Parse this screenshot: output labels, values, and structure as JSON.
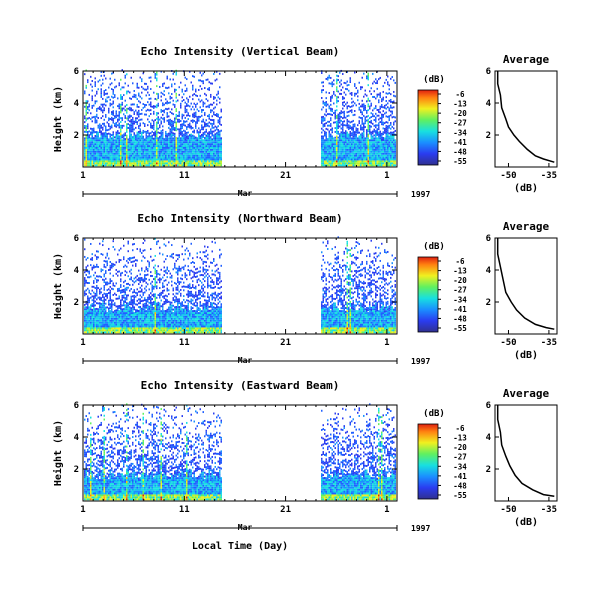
{
  "figure": {
    "x_axis_label": "Local Time (Day)",
    "month_label": "Mar",
    "year_label": "1997",
    "x_tick_labels": [
      "1",
      "11",
      "21",
      "1"
    ]
  },
  "colorbar": {
    "unit_label": "(dB)",
    "tick_labels": [
      "-6",
      "-13",
      "-20",
      "-27",
      "-34",
      "-41",
      "-48",
      "-55"
    ],
    "range_db": [
      -55,
      -6
    ]
  },
  "chart_data": [
    {
      "type": "heatmap",
      "title": "Echo Intensity (Vertical Beam)",
      "ylabel": "Height (km)",
      "x_ticks": [
        1,
        11,
        21,
        31
      ],
      "y_ticks": [
        2,
        4,
        6
      ],
      "y_tick_labels": [
        "2",
        "4",
        "6"
      ],
      "xlim": [
        1,
        32
      ],
      "ylim": [
        0,
        6
      ],
      "data_gap_days": [
        14.6,
        24.4
      ],
      "colorbar_unit": "(dB)"
    },
    {
      "type": "line",
      "title": "Average",
      "xlabel": "(dB)",
      "x_tick_labels": [
        "-50",
        "-35"
      ],
      "y_tick_labels": [
        "2",
        "4",
        "6"
      ],
      "xlim": [
        -55,
        -32
      ],
      "ylim": [
        0,
        6
      ],
      "profile": [
        [
          -54,
          6.0
        ],
        [
          -54,
          5.2
        ],
        [
          -53,
          4.5
        ],
        [
          -52.5,
          3.7
        ],
        [
          -51,
          3.0
        ],
        [
          -50,
          2.5
        ],
        [
          -48,
          2.0
        ],
        [
          -46,
          1.6
        ],
        [
          -43,
          1.1
        ],
        [
          -40,
          0.7
        ],
        [
          -37,
          0.5
        ],
        [
          -33,
          0.3
        ]
      ]
    },
    {
      "type": "heatmap",
      "title": "Echo Intensity (Northward Beam)",
      "ylabel": "Height (km)",
      "x_ticks": [
        1,
        11,
        21,
        31
      ],
      "y_ticks": [
        2,
        4,
        6
      ],
      "y_tick_labels": [
        "2",
        "4",
        "6"
      ],
      "xlim": [
        1,
        32
      ],
      "ylim": [
        0,
        6
      ],
      "data_gap_days": [
        14.6,
        24.4
      ],
      "colorbar_unit": "(dB)"
    },
    {
      "type": "line",
      "title": "Average",
      "xlabel": "(dB)",
      "x_tick_labels": [
        "-50",
        "-35"
      ],
      "y_tick_labels": [
        "2",
        "4",
        "6"
      ],
      "xlim": [
        -55,
        -32
      ],
      "ylim": [
        0,
        6
      ],
      "profile": [
        [
          -54,
          6.0
        ],
        [
          -54,
          5.0
        ],
        [
          -53,
          4.2
        ],
        [
          -52,
          3.4
        ],
        [
          -51,
          2.6
        ],
        [
          -49,
          2.0
        ],
        [
          -47,
          1.5
        ],
        [
          -44,
          1.0
        ],
        [
          -40,
          0.6
        ],
        [
          -36,
          0.4
        ],
        [
          -33,
          0.3
        ]
      ]
    },
    {
      "type": "heatmap",
      "title": "Echo Intensity (Eastward Beam)",
      "ylabel": "Height (km)",
      "x_ticks": [
        1,
        11,
        21,
        31
      ],
      "y_ticks": [
        2,
        4,
        6
      ],
      "y_tick_labels": [
        "2",
        "4",
        "6"
      ],
      "xlim": [
        1,
        32
      ],
      "ylim": [
        0,
        6
      ],
      "data_gap_days": [
        14.6,
        24.4
      ],
      "colorbar_unit": "(dB)"
    },
    {
      "type": "line",
      "title": "Average",
      "xlabel": "(dB)",
      "x_tick_labels": [
        "-50",
        "-35"
      ],
      "y_tick_labels": [
        "2",
        "4",
        "6"
      ],
      "xlim": [
        -55,
        -32
      ],
      "ylim": [
        0,
        6
      ],
      "profile": [
        [
          -54,
          6.0
        ],
        [
          -54,
          5.1
        ],
        [
          -53,
          4.3
        ],
        [
          -52.5,
          3.5
        ],
        [
          -51,
          2.8
        ],
        [
          -49.5,
          2.2
        ],
        [
          -47.5,
          1.6
        ],
        [
          -45,
          1.1
        ],
        [
          -41,
          0.7
        ],
        [
          -37,
          0.4
        ],
        [
          -33,
          0.3
        ]
      ]
    }
  ]
}
